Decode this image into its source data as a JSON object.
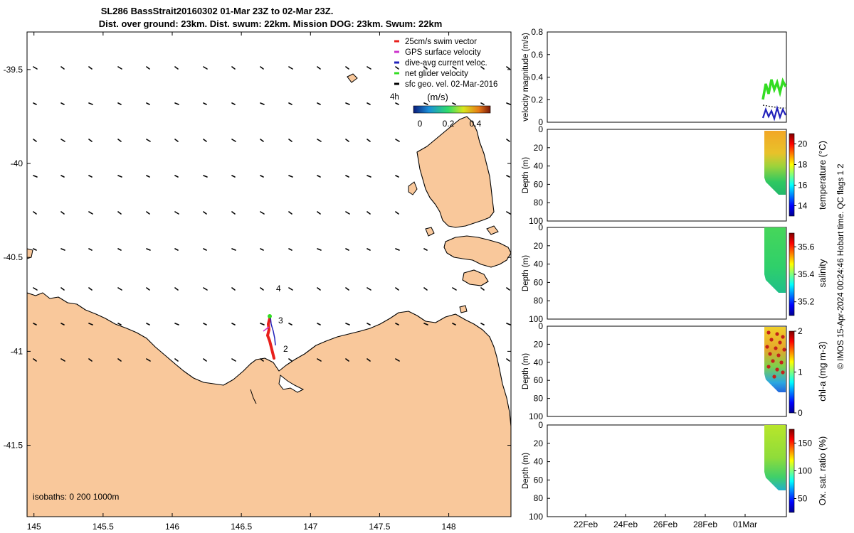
{
  "title_line1": "SL286 BassStrait20160302 01-Mar 23Z to 02-Mar 23Z.",
  "title_line2": "Dist. over ground: 23km. Dist. swum: 22km. Mission DOG: 23km. Swum: 22km",
  "colors": {
    "land": "#f9c89b",
    "coast": "#000000",
    "swim_vector": "#e8201c",
    "gps_velocity": "#cc33cc",
    "dive_avg_current": "#2222bb",
    "net_glider_velocity": "#33dd22",
    "sfc_geo_vel": "#000000"
  },
  "legend": {
    "items": [
      {
        "label": "25cm/s swim vector",
        "color": "#e8201c"
      },
      {
        "label": "GPS surface velocity",
        "color": "#cc33cc"
      },
      {
        "label": "dive-avg current veloc.",
        "color": "#2222bb"
      },
      {
        "label": "net glider velocity",
        "color": "#33dd22"
      },
      {
        "label": "sfc geo. vel. 02-Mar-2016",
        "color": "#000000"
      }
    ],
    "scale_label": "4h",
    "colorbar_title": "(m/s)",
    "colorbar_ticks": [
      "0",
      "0.2",
      "0.4"
    ]
  },
  "map": {
    "xlim": [
      144.95,
      148.45
    ],
    "ylim": [
      -41.88,
      -39.3
    ],
    "xticks": [
      145,
      145.5,
      146,
      146.5,
      147,
      147.5,
      148
    ],
    "xtick_labels": [
      "145",
      "145.5",
      "146",
      "146.5",
      "147",
      "147.5",
      "148"
    ],
    "yticks": [
      -39.5,
      -40,
      -40.5,
      -41,
      -41.5
    ],
    "ytick_labels": [
      "-39.5",
      "-40",
      "-40.5",
      "-41",
      "-41.5"
    ],
    "isobaths_label": "isobaths: 0   200  1000m",
    "waypoint_labels": [
      "4",
      "3",
      "2"
    ]
  },
  "chart_data": [
    {
      "type": "line",
      "panel": "velocity",
      "ylabel": "velocity magnitude (m/s)",
      "ylim": [
        0,
        0.8
      ],
      "yticks": [
        "0",
        "0.2",
        "0.4",
        "0.6",
        "0.8"
      ],
      "series": [
        {
          "name": "net glider velocity",
          "color": "#33dd22",
          "x": [
            "2016-03-01",
            "2016-03-02"
          ],
          "y": [
            0.25,
            0.33
          ]
        },
        {
          "name": "dive-avg current veloc.",
          "color": "#2222bb",
          "x": [
            "2016-03-01",
            "2016-03-02"
          ],
          "y": [
            0.06,
            0.08
          ]
        },
        {
          "name": "sfc geo. vel. 02-Mar-2016",
          "color": "#000000",
          "x": [
            "2016-03-01",
            "2016-03-02"
          ],
          "y": [
            0.14,
            0.13
          ]
        }
      ]
    },
    {
      "type": "heatmap",
      "panel": "temperature",
      "ylabel": "Depth (m)",
      "cbar_label": "temperature (°C)",
      "ylim": [
        100,
        0
      ],
      "yticks": [
        "0",
        "20",
        "40",
        "60",
        "80",
        "100"
      ],
      "cbar_ticks": [
        "14",
        "16",
        "18",
        "20"
      ],
      "cbar_range": [
        13,
        21
      ]
    },
    {
      "type": "heatmap",
      "panel": "salinity",
      "ylabel": "Depth (m)",
      "cbar_label": "salinity",
      "ylim": [
        100,
        0
      ],
      "yticks": [
        "0",
        "20",
        "40",
        "60",
        "80",
        "100"
      ],
      "cbar_ticks": [
        "35.2",
        "35.4",
        "35.6"
      ],
      "cbar_range": [
        35.1,
        35.7
      ]
    },
    {
      "type": "heatmap",
      "panel": "chl-a",
      "ylabel": "Depth (m)",
      "cbar_label": "chl-a (mg m-3)",
      "ylim": [
        100,
        0
      ],
      "yticks": [
        "0",
        "20",
        "40",
        "60",
        "80",
        "100"
      ],
      "cbar_ticks": [
        "0",
        "1",
        "2"
      ],
      "cbar_range": [
        0,
        2
      ]
    },
    {
      "type": "heatmap",
      "panel": "oxygen",
      "ylabel": "Depth (m)",
      "cbar_label": "Ox. sat. ratio (%)",
      "ylim": [
        100,
        0
      ],
      "yticks": [
        "0",
        "20",
        "40",
        "60",
        "80",
        "100"
      ],
      "cbar_ticks": [
        "50",
        "100",
        "150"
      ],
      "cbar_range": [
        25,
        175
      ],
      "xticks": [
        "22Feb",
        "24Feb",
        "26Feb",
        "28Feb",
        "01Mar"
      ]
    }
  ],
  "side_caption": "© IMOS 15-Apr-2024 00:24:46 Hobart time. QC flags 1  2"
}
